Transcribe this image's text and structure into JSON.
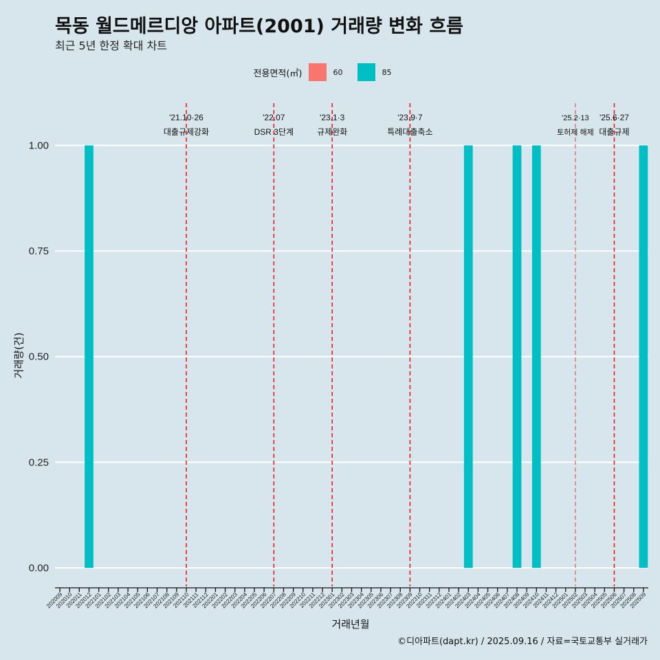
{
  "title": "목동 월드메르디앙 아파트(2001) 거래량 변화 흐름",
  "subtitle": "최근 5년 한정 확대 차트",
  "caption": "©디아파트(dapt.kr) / 2025.09.16 / 자료=국토교통부 실거래가",
  "legend": {
    "title": "전용면적(㎡)",
    "items": [
      {
        "label": "60",
        "color": "#F8766D"
      },
      {
        "label": "85",
        "color": "#00BFC4"
      }
    ]
  },
  "chart_data": {
    "type": "bar",
    "title": "목동 월드메르디앙 아파트(2001) 거래량 변화 흐름",
    "xlabel": "거래년월",
    "ylabel": "거래량(건)",
    "ylim": [
      -0.044,
      1.1
    ],
    "yticks": [
      0.0,
      0.25,
      0.5,
      0.75,
      1.0
    ],
    "ytick_labels": [
      "0.00",
      "0.25",
      "0.50",
      "0.75",
      "1.00"
    ],
    "categories": [
      "202009",
      "202010",
      "202011",
      "202012",
      "202101",
      "202102",
      "202103",
      "202104",
      "202105",
      "202106",
      "202107",
      "202108",
      "202109",
      "202110",
      "202111",
      "202112",
      "202201",
      "202202",
      "202203",
      "202204",
      "202205",
      "202206",
      "202207",
      "202208",
      "202209",
      "202210",
      "202211",
      "202212",
      "202301",
      "202302",
      "202303",
      "202304",
      "202305",
      "202306",
      "202307",
      "202308",
      "202309",
      "202310",
      "202311",
      "202312",
      "202401",
      "202402",
      "202403",
      "202404",
      "202405",
      "202406",
      "202407",
      "202408",
      "202409",
      "202410",
      "202411",
      "202412",
      "202501",
      "202502",
      "202503",
      "202504",
      "202505",
      "202506",
      "202507",
      "202508",
      "202509"
    ],
    "series": [
      {
        "name": "60",
        "color": "#F8766D",
        "values": [
          0,
          0,
          0,
          0,
          0,
          0,
          0,
          0,
          0,
          0,
          0,
          0,
          0,
          0,
          0,
          0,
          0,
          0,
          0,
          0,
          0,
          0,
          0,
          0,
          0,
          0,
          0,
          0,
          0,
          0,
          0,
          0,
          0,
          0,
          0,
          0,
          0,
          0,
          0,
          0,
          0,
          0,
          0,
          0,
          0,
          0,
          0,
          0,
          0,
          0,
          0,
          0,
          0,
          0,
          0,
          0,
          0,
          0,
          0,
          0,
          0
        ]
      },
      {
        "name": "85",
        "color": "#00BFC4",
        "values": [
          0,
          0,
          0,
          1,
          0,
          0,
          0,
          0,
          0,
          0,
          0,
          0,
          0,
          0,
          0,
          0,
          0,
          0,
          0,
          0,
          0,
          0,
          0,
          0,
          0,
          0,
          0,
          0,
          0,
          0,
          0,
          0,
          0,
          0,
          0,
          0,
          0,
          0,
          0,
          0,
          0,
          0,
          1,
          0,
          0,
          0,
          0,
          1,
          0,
          1,
          0,
          0,
          0,
          0,
          0,
          0,
          0,
          0,
          0,
          0,
          1
        ]
      }
    ],
    "annotations": [
      {
        "x": "202110",
        "date": "'21.10·26",
        "label": "대출규제강화",
        "style": "dashed"
      },
      {
        "x": "202207",
        "date": "'22.07",
        "label": "DSR 3단계",
        "style": "dashed"
      },
      {
        "x": "202301",
        "date": "'23.1·3",
        "label": "규제완화",
        "style": "dashed"
      },
      {
        "x": "202309",
        "date": "'23.9·7",
        "label": "특례대출축소",
        "style": "dashed"
      },
      {
        "x": "202502",
        "date": "'25.2·13",
        "label": "토허제 해제",
        "style": "dashed-thin"
      },
      {
        "x": "202506",
        "date": "'25.6·27",
        "label": "대출규제",
        "style": "dashed"
      }
    ],
    "grid": true,
    "legend_position": "top"
  }
}
